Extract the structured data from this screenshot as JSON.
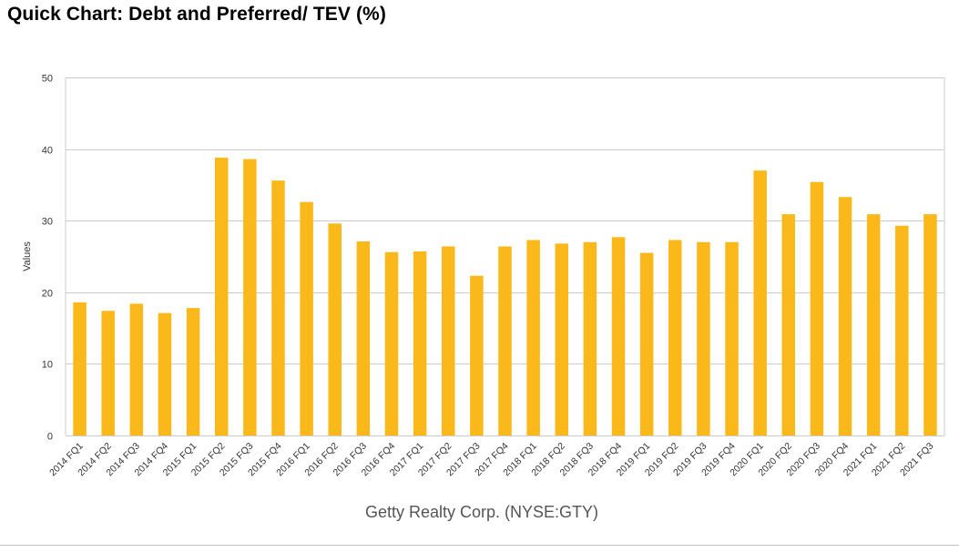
{
  "page": {
    "title": "Quick Chart: Debt and Preferred/ TEV (%)",
    "company": "Getty Realty Corp. (NYSE:GTY)"
  },
  "colors": {
    "bar": "#FBB81A",
    "grid": "#cccccc",
    "text": "#333333"
  },
  "chart_data": {
    "type": "bar",
    "title": "Quick Chart: Debt and Preferred/ TEV (%)",
    "xlabel": "",
    "ylabel": "Values",
    "ylim": [
      0,
      50
    ],
    "yticks": [
      0,
      10,
      20,
      30,
      40,
      50
    ],
    "grid": true,
    "legend": "none",
    "categories": [
      "2014 FQ1",
      "2014 FQ2",
      "2014 FQ3",
      "2014 FQ4",
      "2015 FQ1",
      "2015 FQ2",
      "2015 FQ3",
      "2015 FQ4",
      "2016 FQ1",
      "2016 FQ2",
      "2016 FQ3",
      "2016 FQ4",
      "2017 FQ1",
      "2017 FQ2",
      "2017 FQ3",
      "2017 FQ4",
      "2018 FQ1",
      "2018 FQ2",
      "2018 FQ3",
      "2018 FQ4",
      "2019 FQ1",
      "2019 FQ2",
      "2019 FQ3",
      "2019 FQ4",
      "2020 FQ1",
      "2020 FQ2",
      "2020 FQ3",
      "2020 FQ4",
      "2021 FQ1",
      "2021 FQ2",
      "2021 FQ3"
    ],
    "values": [
      18.6,
      17.4,
      18.4,
      17.1,
      17.8,
      38.8,
      38.6,
      35.6,
      32.6,
      29.6,
      27.1,
      25.6,
      25.7,
      26.4,
      22.3,
      26.4,
      27.3,
      26.8,
      27.0,
      27.7,
      25.5,
      27.3,
      27.0,
      27.0,
      37.0,
      30.9,
      35.4,
      33.3,
      30.9,
      29.3,
      30.9
    ]
  }
}
